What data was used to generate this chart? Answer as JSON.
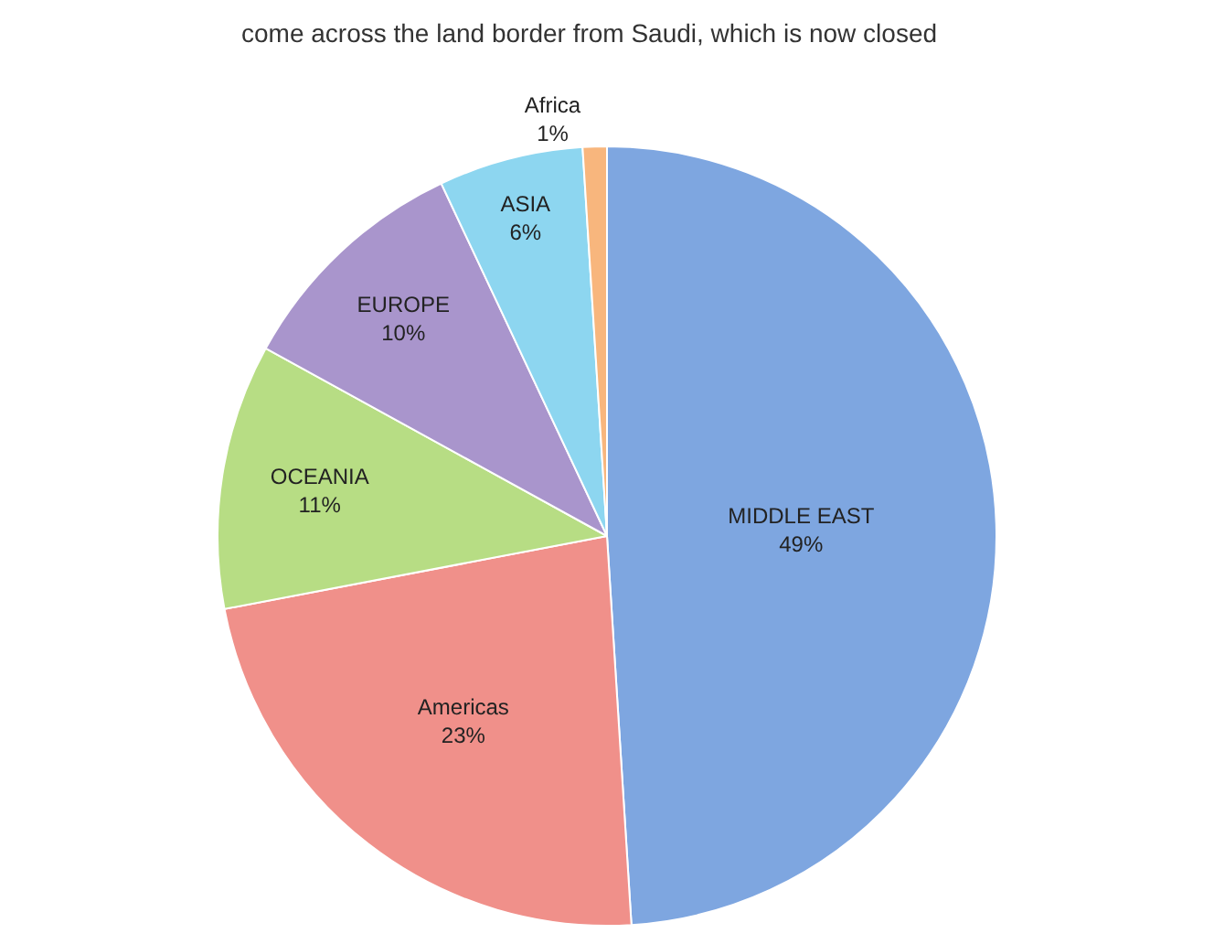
{
  "chart_data": {
    "type": "pie",
    "annotations": [
      "come across the land border from Saudi, which is now closed"
    ],
    "categories": [
      "MIDDLE EAST",
      "Americas",
      "OCEANIA",
      "EUROPE",
      "ASIA",
      "Africa"
    ],
    "values": [
      49,
      23,
      11,
      10,
      6,
      1
    ],
    "value_labels": [
      "49%",
      "23%",
      "11%",
      "10%",
      "6%",
      "1%"
    ],
    "colors": [
      "#7ea6e0",
      "#f0908a",
      "#b7dd84",
      "#a995cc",
      "#8dd6f0",
      "#f8b67d"
    ],
    "legend": false
  }
}
